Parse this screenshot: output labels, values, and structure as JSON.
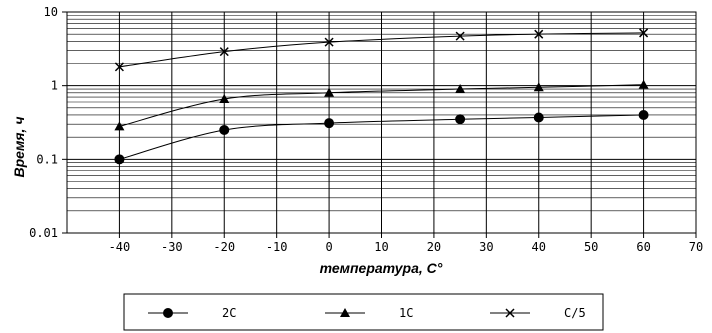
{
  "chart_data": {
    "type": "line",
    "xlabel": "температура, С°",
    "ylabel": "Время, ч",
    "xlim": [
      -50,
      70
    ],
    "ylim": [
      0.01,
      10
    ],
    "yscale": "log",
    "grid": true,
    "legend_position": "bottom",
    "x_ticks": [
      "-40",
      "-30",
      "-20",
      "-10",
      "0",
      "10",
      "20",
      "30",
      "40",
      "50",
      "60",
      "70"
    ],
    "y_ticks": [
      "0.01",
      "0.1",
      "1",
      "10"
    ],
    "x": [
      -40,
      -20,
      0,
      25,
      40,
      60
    ],
    "series": [
      {
        "name": "2C",
        "marker": "circle",
        "values": [
          0.1,
          0.25,
          0.31,
          0.35,
          0.37,
          0.4
        ]
      },
      {
        "name": "1C",
        "marker": "triangle",
        "values": [
          0.28,
          0.66,
          0.8,
          0.9,
          0.95,
          1.03
        ]
      },
      {
        "name": "C/5",
        "marker": "x",
        "values": [
          1.8,
          2.9,
          3.9,
          4.7,
          5.0,
          5.2
        ]
      }
    ]
  }
}
